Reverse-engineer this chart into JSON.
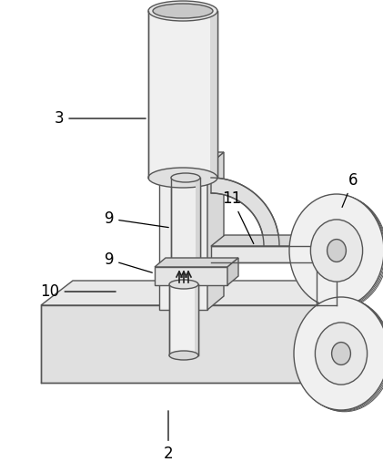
{
  "bg_color": "#ffffff",
  "lc": "#888888",
  "lc_dark": "#555555",
  "fc_light": "#f0f0f0",
  "fc_mid": "#e0e0e0",
  "fc_dark": "#cccccc",
  "figsize": [
    4.21,
    5.18
  ],
  "dpi": 100
}
